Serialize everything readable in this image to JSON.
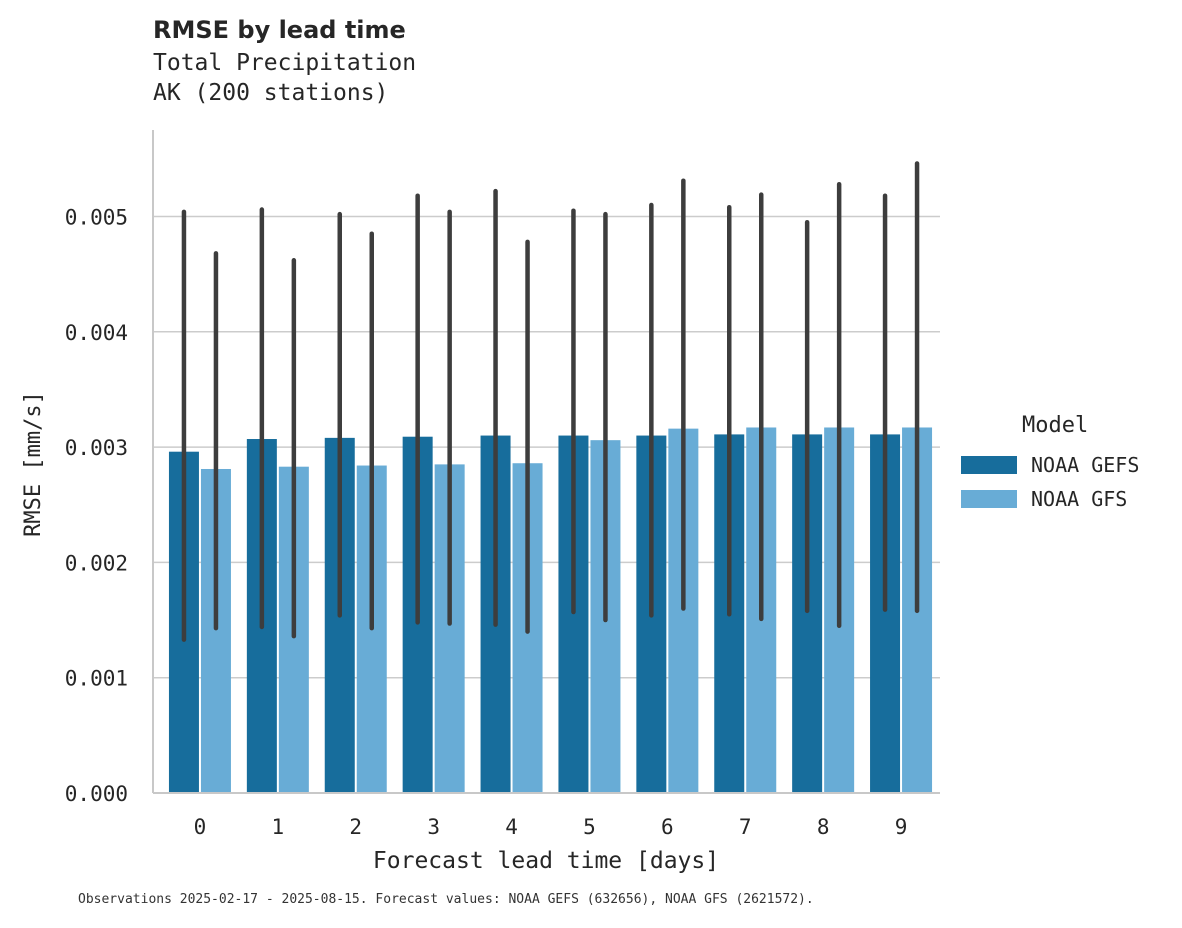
{
  "chart_data": {
    "type": "bar",
    "title": "RMSE by lead time",
    "subtitle_lines": [
      "Total Precipitation",
      "AK (200 stations)"
    ],
    "xlabel": "Forecast lead time [days]",
    "ylabel": "RMSE [mm/s]",
    "categories": [
      "0",
      "1",
      "2",
      "3",
      "4",
      "5",
      "6",
      "7",
      "8",
      "9"
    ],
    "ylim": [
      0,
      0.00575
    ],
    "yticks": [
      0.0,
      0.001,
      0.002,
      0.003,
      0.004,
      0.005
    ],
    "ytick_labels": [
      "0.000",
      "0.001",
      "0.002",
      "0.003",
      "0.004",
      "0.005"
    ],
    "grid": "horizontal",
    "legend_title": "Model",
    "legend_position": "right",
    "series": [
      {
        "name": "NOAA GEFS",
        "color": "#176d9c",
        "values": [
          0.00296,
          0.00307,
          0.00308,
          0.00309,
          0.0031,
          0.0031,
          0.0031,
          0.00311,
          0.00311,
          0.00311
        ],
        "ci_low": [
          0.00133,
          0.00144,
          0.00154,
          0.00148,
          0.00146,
          0.00157,
          0.00154,
          0.00155,
          0.00158,
          0.00159
        ],
        "ci_high": [
          0.00504,
          0.00506,
          0.00502,
          0.00518,
          0.00522,
          0.00505,
          0.0051,
          0.00508,
          0.00495,
          0.00518
        ]
      },
      {
        "name": "NOAA GFS",
        "color": "#68acd6",
        "values": [
          0.00281,
          0.00283,
          0.00284,
          0.00285,
          0.00286,
          0.00306,
          0.00316,
          0.00317,
          0.00317,
          0.00317
        ],
        "ci_low": [
          0.00143,
          0.00136,
          0.00143,
          0.00147,
          0.0014,
          0.0015,
          0.0016,
          0.00151,
          0.00145,
          0.00158
        ],
        "ci_high": [
          0.00468,
          0.00462,
          0.00485,
          0.00504,
          0.00478,
          0.00502,
          0.00531,
          0.00519,
          0.00528,
          0.00546
        ]
      }
    ]
  },
  "footer_note": "Observations 2025-02-17 - 2025-08-15. Forecast values: NOAA GEFS (632656), NOAA GFS (2621572)."
}
